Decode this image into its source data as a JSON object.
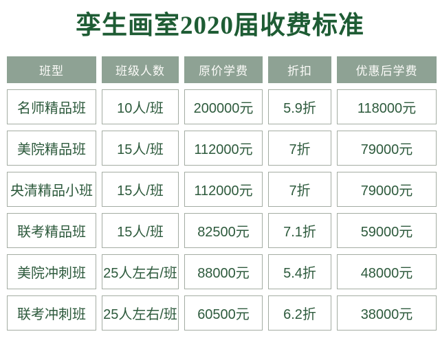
{
  "page": {
    "title": "孪生画室2020届收费标准"
  },
  "colors": {
    "title_green": "#1E5C34",
    "header_background": "#8EA294",
    "header_text": "#FBFBF8",
    "cell_text": "#2D5A3C",
    "cell_border": "#A3ACA2",
    "page_background": "#FFFFFF"
  },
  "chart_data": {
    "type": "table",
    "title": "孪生画室2020届收费标准",
    "columns": [
      "班型",
      "班级人数",
      "原价学费",
      "折扣",
      "优惠后学费"
    ],
    "rows": [
      [
        "名师精品班",
        "10人/班",
        "200000元",
        "5.9折",
        "118000元"
      ],
      [
        "美院精品班",
        "15人/班",
        "112000元",
        "7折",
        "79000元"
      ],
      [
        "央清精品小班",
        "15人/班",
        "112000元",
        "7折",
        "79000元"
      ],
      [
        "联考精品班",
        "15人/班",
        "82500元",
        "7.1折",
        "59000元"
      ],
      [
        "美院冲刺班",
        "25人左右/班",
        "88000元",
        "5.4折",
        "48000元"
      ],
      [
        "联考冲刺班",
        "25人左右/班",
        "60500元",
        "6.2折",
        "38000元"
      ]
    ]
  }
}
